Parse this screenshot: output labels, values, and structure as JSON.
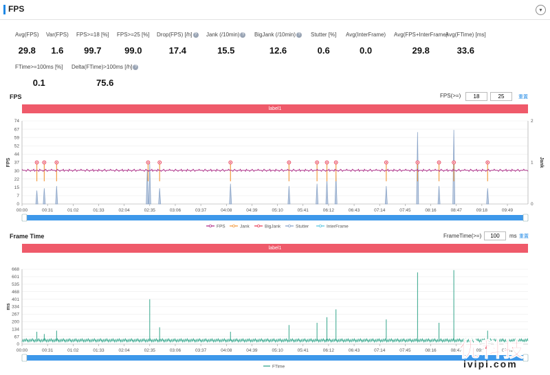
{
  "header": {
    "title": "FPS"
  },
  "metrics": [
    {
      "label": "Avg(FPS)",
      "value": "29.8",
      "help": false
    },
    {
      "label": "Var(FPS)",
      "value": "1.6",
      "help": false
    },
    {
      "label": "FPS>=18 [%]",
      "value": "99.7",
      "help": false
    },
    {
      "label": "FPS>=25 [%]",
      "value": "99.0",
      "help": false
    },
    {
      "label": "Drop(FPS) [/h]",
      "value": "17.4",
      "help": true
    },
    {
      "label": "Jank (/10min)",
      "value": "15.5",
      "help": true
    },
    {
      "label": "BigJank (/10min)",
      "value": "12.6",
      "help": true
    },
    {
      "label": "Stutter [%]",
      "value": "0.6",
      "help": false
    },
    {
      "label": "Avg(InterFrame)",
      "value": "0.0",
      "help": false
    },
    {
      "label": "Avg(FPS+InterFrame)",
      "value": "29.8",
      "help": false
    },
    {
      "label": "Avg(FTime) [ms]",
      "value": "33.6",
      "help": false
    },
    {
      "label": "FTime>=100ms [%]",
      "value": "0.1",
      "help": false
    },
    {
      "label": "Delta(FTime)>100ms [/h]",
      "value": "75.6",
      "help": true
    }
  ],
  "fps_section": {
    "title": "FPS",
    "threshold_label": "FPS(>=)",
    "threshold1": "18",
    "threshold2": "25",
    "reset_label": "重置",
    "label_bar": "label1"
  },
  "frametime_section": {
    "title": "Frame Time",
    "threshold_label": "FrameTime(>=)",
    "threshold": "100",
    "unit": "ms",
    "reset_label": "重置",
    "label_bar": "label1"
  },
  "colors": {
    "fps": "#b0338c",
    "jank": "#f39c42",
    "bigjank": "#e8425a",
    "stutter": "#8aa4c8",
    "interframe": "#5cc6e0",
    "ftime": "#33a58a",
    "label_bar": "#ef5a6a",
    "slider": "#3d98ea"
  },
  "watermark": {
    "brand": "优科技",
    "url": "ivipi.com"
  },
  "chart_data": [
    {
      "type": "line",
      "title": "",
      "xlabel": "",
      "ylabel": "FPS",
      "y2label": "Jank",
      "xlim": [
        0,
        614
      ],
      "ylim": [
        0,
        74
      ],
      "y2lim": [
        0,
        2
      ],
      "yticks": [
        "74",
        "67",
        "59",
        "52",
        "44",
        "37",
        "30",
        "22",
        "15",
        "7",
        "0"
      ],
      "y2ticks": [
        "2",
        "1",
        "0"
      ],
      "xticks": [
        {
          "t": 0,
          "label": "00:00"
        },
        {
          "t": 31,
          "label": "00:31"
        },
        {
          "t": 62,
          "label": "01:02"
        },
        {
          "t": 93,
          "label": "01:33"
        },
        {
          "t": 124,
          "label": "02:04"
        },
        {
          "t": 155,
          "label": "02:35"
        },
        {
          "t": 186,
          "label": "03:06"
        },
        {
          "t": 217,
          "label": "03:37"
        },
        {
          "t": 248,
          "label": "04:08"
        },
        {
          "t": 279,
          "label": "04:39"
        },
        {
          "t": 310,
          "label": "05:10"
        },
        {
          "t": 341,
          "label": "05:41"
        },
        {
          "t": 372,
          "label": "06:12"
        },
        {
          "t": 403,
          "label": "06:43"
        },
        {
          "t": 434,
          "label": "07:14"
        },
        {
          "t": 465,
          "label": "07:45"
        },
        {
          "t": 496,
          "label": "08:16"
        },
        {
          "t": 527,
          "label": "08:47"
        },
        {
          "t": 558,
          "label": "09:18"
        },
        {
          "t": 589,
          "label": "09:49"
        }
      ],
      "legend": [
        "FPS",
        "Jank",
        "BigJank",
        "Stutter",
        "InterFrame"
      ],
      "legend_position": "bottom",
      "series": [
        {
          "name": "FPS",
          "baseline": 30
        },
        {
          "name": "BigJank",
          "events": [
            {
              "t": 18,
              "v": 1
            },
            {
              "t": 27,
              "v": 1
            },
            {
              "t": 42,
              "v": 1
            },
            {
              "t": 153,
              "v": 1
            },
            {
              "t": 167,
              "v": 1
            },
            {
              "t": 253,
              "v": 1
            },
            {
              "t": 324,
              "v": 1
            },
            {
              "t": 358,
              "v": 1
            },
            {
              "t": 370,
              "v": 1
            },
            {
              "t": 381,
              "v": 1
            },
            {
              "t": 442,
              "v": 1
            },
            {
              "t": 480,
              "v": 1
            },
            {
              "t": 506,
              "v": 1
            },
            {
              "t": 524,
              "v": 1
            },
            {
              "t": 565,
              "v": 1
            }
          ]
        },
        {
          "name": "Stutter",
          "spikes": [
            {
              "t": 18,
              "v": 12
            },
            {
              "t": 27,
              "v": 14
            },
            {
              "t": 42,
              "v": 16
            },
            {
              "t": 152,
              "v": 30
            },
            {
              "t": 155,
              "v": 36
            },
            {
              "t": 167,
              "v": 14
            },
            {
              "t": 253,
              "v": 18
            },
            {
              "t": 324,
              "v": 16
            },
            {
              "t": 358,
              "v": 18
            },
            {
              "t": 370,
              "v": 22
            },
            {
              "t": 381,
              "v": 26
            },
            {
              "t": 442,
              "v": 16
            },
            {
              "t": 480,
              "v": 64
            },
            {
              "t": 506,
              "v": 16
            },
            {
              "t": 524,
              "v": 66
            },
            {
              "t": 565,
              "v": 14
            }
          ]
        }
      ]
    },
    {
      "type": "line",
      "title": "",
      "xlabel": "",
      "ylabel": "ms",
      "xlim": [
        0,
        614
      ],
      "ylim": [
        0,
        668
      ],
      "yticks": [
        "668",
        "601",
        "535",
        "468",
        "401",
        "334",
        "267",
        "200",
        "134",
        "67",
        "0"
      ],
      "xticks": [
        {
          "t": 0,
          "label": "00:00"
        },
        {
          "t": 31,
          "label": "00:31"
        },
        {
          "t": 62,
          "label": "01:02"
        },
        {
          "t": 93,
          "label": "01:33"
        },
        {
          "t": 124,
          "label": "02:04"
        },
        {
          "t": 155,
          "label": "02:35"
        },
        {
          "t": 186,
          "label": "03:06"
        },
        {
          "t": 217,
          "label": "03:37"
        },
        {
          "t": 248,
          "label": "04:08"
        },
        {
          "t": 279,
          "label": "04:39"
        },
        {
          "t": 310,
          "label": "05:10"
        },
        {
          "t": 341,
          "label": "05:41"
        },
        {
          "t": 372,
          "label": "06:12"
        },
        {
          "t": 403,
          "label": "06:43"
        },
        {
          "t": 434,
          "label": "07:14"
        },
        {
          "t": 465,
          "label": "07:45"
        },
        {
          "t": 496,
          "label": "08:16"
        },
        {
          "t": 527,
          "label": "08:47"
        },
        {
          "t": 558,
          "label": "09:18"
        },
        {
          "t": 589,
          "label": "09:49"
        }
      ],
      "legend": [
        "FTime"
      ],
      "legend_position": "bottom",
      "series": [
        {
          "name": "FTime",
          "baseline": 33,
          "spikes": [
            {
              "t": 18,
              "v": 110
            },
            {
              "t": 27,
              "v": 90
            },
            {
              "t": 42,
              "v": 120
            },
            {
              "t": 155,
              "v": 400
            },
            {
              "t": 167,
              "v": 150
            },
            {
              "t": 253,
              "v": 110
            },
            {
              "t": 324,
              "v": 170
            },
            {
              "t": 358,
              "v": 190
            },
            {
              "t": 370,
              "v": 240
            },
            {
              "t": 381,
              "v": 310
            },
            {
              "t": 442,
              "v": 220
            },
            {
              "t": 480,
              "v": 640
            },
            {
              "t": 506,
              "v": 190
            },
            {
              "t": 524,
              "v": 660
            },
            {
              "t": 565,
              "v": 120
            }
          ]
        }
      ]
    }
  ]
}
